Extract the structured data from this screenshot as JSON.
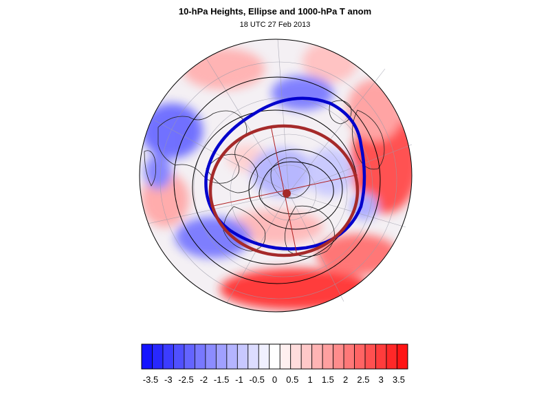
{
  "figure": {
    "title": "10-hPa Heights, Ellipse and 1000-hPa T anom",
    "subtitle": "18 UTC 27 Feb 2013"
  },
  "colors": {
    "cold": "#0000ff",
    "warm": "#ff0000",
    "contour": "#000000",
    "vortex_edge": "#0000cc",
    "ellipse": "#a52a2a"
  },
  "colorbar": {
    "tick_labels": [
      "-3.5",
      "-3",
      "-2.5",
      "-2",
      "-1.5",
      "-1",
      "-0.5",
      "0",
      "0.5",
      "1",
      "1.5",
      "2",
      "2.5",
      "3",
      "3.5"
    ],
    "colors": [
      "#1414ff",
      "#2828ff",
      "#3c3cff",
      "#5050ff",
      "#6464ff",
      "#7878ff",
      "#8c8cff",
      "#a0a0ff",
      "#b4b4ff",
      "#c8c8ff",
      "#dcdcff",
      "#f0f0ff",
      "#ffffff",
      "#fff0f0",
      "#ffdcdc",
      "#ffc8c8",
      "#ffb4b4",
      "#ffa0a0",
      "#ff8c8c",
      "#ff7878",
      "#ff6464",
      "#ff5050",
      "#ff3c3c",
      "#ff2828",
      "#ff1414"
    ]
  },
  "map": {
    "projection": "polar-stereographic-north",
    "field": "1000-hPa temperature anomaly",
    "overlays": [
      "10-hPa height contours",
      "polar vortex edge",
      "fitted ellipse"
    ]
  }
}
